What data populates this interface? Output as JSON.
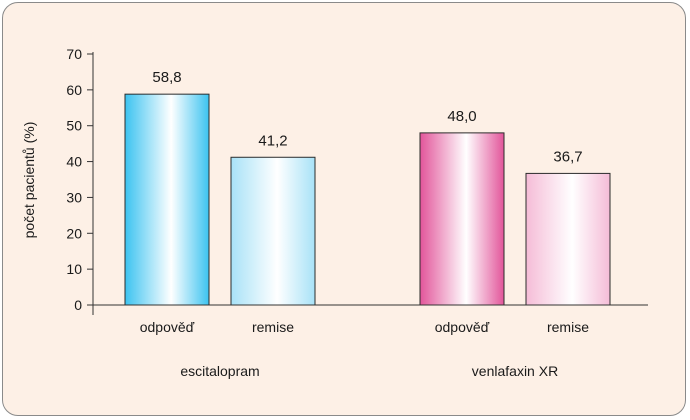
{
  "chart_data": {
    "type": "bar",
    "ylabel": "počet pacientů (%)",
    "ylim": [
      0,
      70
    ],
    "yticks": [
      0,
      10,
      20,
      30,
      40,
      50,
      60,
      70
    ],
    "grid": false,
    "legend": "none",
    "groups": [
      {
        "name": "escitalopram",
        "bars": [
          {
            "category": "odpověď",
            "value": 58.8,
            "label": "58,8",
            "style": "blue-strong"
          },
          {
            "category": "remise",
            "value": 41.2,
            "label": "41,2",
            "style": "blue-light"
          }
        ]
      },
      {
        "name": "venlafaxin XR",
        "bars": [
          {
            "category": "odpověď",
            "value": 48.0,
            "label": "48,0",
            "style": "pink-strong"
          },
          {
            "category": "remise",
            "value": 36.7,
            "label": "36,7",
            "style": "pink-light"
          }
        ]
      }
    ]
  },
  "colors": {
    "background": "#fdf0e6",
    "frame_border": "#8a8a8a",
    "axis": "#333333",
    "bar_outline": "#2b2b2b",
    "blue_edge": "#3cc3f0",
    "blue_light_edge": "#a8e2f7",
    "pink_edge": "#e2559a",
    "pink_light_edge": "#f5bcd7",
    "bar_center": "#ffffff"
  }
}
